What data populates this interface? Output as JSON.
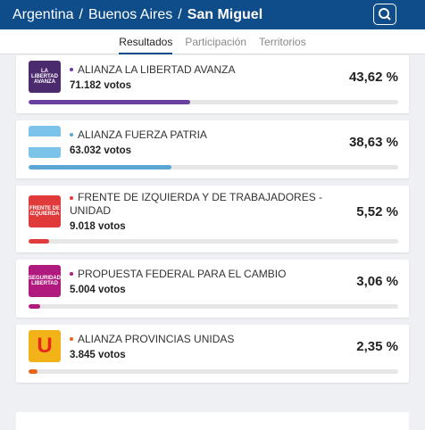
{
  "header": {
    "breadcrumb": [
      "Argentina",
      "Buenos Aires",
      "San Miguel"
    ],
    "separator": "/"
  },
  "tabs": [
    "Resultados",
    "Participación",
    "Territorios"
  ],
  "active_tab": 0,
  "parties": [
    {
      "name": "ALIANZA LA LIBERTAD AVANZA",
      "votes": "71.182 votos",
      "percent": 43.62,
      "percent_label": "43,62 %",
      "color": "#6b3fa0",
      "logo_bg": "#4b2a6e",
      "logo_text": "LA LIBERTAD AVANZA"
    },
    {
      "name": "ALIANZA FUERZA PATRIA",
      "votes": "63.032 votos",
      "percent": 38.63,
      "percent_label": "38,63 %",
      "color": "#5aa7d6",
      "logo_bg": "flag"
    },
    {
      "name": "FRENTE DE IZQUIERDA Y DE TRABAJADORES - UNIDAD",
      "votes": "9.018 votos",
      "percent": 5.52,
      "percent_label": "5,52 %",
      "color": "#e03a3a",
      "logo_bg": "#e03a3a",
      "logo_text": "FRENTE DE IZQUIERDA"
    },
    {
      "name": "PROPUESTA FEDERAL PARA EL CAMBIO",
      "votes": "5.004 votos",
      "percent": 3.06,
      "percent_label": "3,06 %",
      "color": "#b0197e",
      "logo_bg": "#b0197e",
      "logo_text": "SEGURIDAD LIBERTAD"
    },
    {
      "name": "ALIANZA PROVINCIAS UNIDAS",
      "votes": "3.845 votos",
      "percent": 2.35,
      "percent_label": "2,35 %",
      "color": "#e8641b",
      "logo_bg": "#f2b318",
      "logo_text": "U"
    }
  ]
}
